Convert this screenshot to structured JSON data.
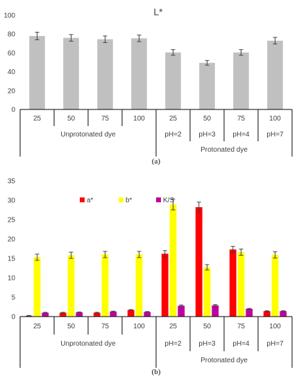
{
  "colors": {
    "gray": "#c0c0c0",
    "red": "#ff0000",
    "yellow": "#ffff00",
    "magenta": "#c000a0"
  },
  "chart_data": [
    {
      "type": "bar",
      "title": "L*",
      "caption": "(a)",
      "ylim": [
        0,
        100
      ],
      "yticks": [
        0,
        20,
        40,
        60,
        80,
        100
      ],
      "categories": [
        "25",
        "50",
        "75",
        "100",
        "25",
        "50",
        "75",
        "100"
      ],
      "subcategories": [
        "",
        "",
        "",
        "",
        "pH=2",
        "pH=3",
        "pH=4",
        "pH=7"
      ],
      "groups": [
        {
          "label": "Unprotonated dye",
          "span": [
            0,
            3
          ]
        },
        {
          "label": "Protonated dye",
          "span": [
            4,
            7
          ]
        }
      ],
      "series": [
        {
          "values": [
            78,
            76,
            74.5,
            75.5,
            60.5,
            49.5,
            60.5,
            73
          ],
          "errors": [
            4,
            3.5,
            3.5,
            3.5,
            3,
            2.5,
            3,
            3.5
          ],
          "color": "#c0c0c0"
        }
      ]
    },
    {
      "type": "bar",
      "caption": "(b)",
      "ylim": [
        0,
        35
      ],
      "yticks": [
        0,
        5,
        10,
        15,
        20,
        25,
        30,
        35
      ],
      "categories": [
        "25",
        "50",
        "75",
        "100",
        "25",
        "50",
        "75",
        "100"
      ],
      "subcategories": [
        "",
        "",
        "",
        "",
        "pH=2",
        "pH=3",
        "pH=4",
        "pH=7"
      ],
      "groups": [
        {
          "label": "Unprotonated dye",
          "span": [
            0,
            3
          ]
        },
        {
          "label": "Protonated dye",
          "span": [
            4,
            7
          ]
        }
      ],
      "legend_position": "top-center",
      "series": [
        {
          "name": "a*",
          "color": "#ff0000",
          "values": [
            0.2,
            1.0,
            1.0,
            1.7,
            16.2,
            28.2,
            17.3,
            1.4
          ],
          "errors": [
            0.1,
            0.1,
            0.1,
            0.1,
            0.8,
            1.3,
            0.8,
            0.1
          ]
        },
        {
          "name": "b*",
          "color": "#ffff00",
          "values": [
            15.3,
            15.8,
            16.0,
            16.0,
            28.9,
            12.7,
            16.6,
            15.9
          ],
          "errors": [
            0.8,
            0.8,
            0.8,
            0.8,
            1.4,
            0.7,
            0.8,
            0.8
          ]
        },
        {
          "name": "K/S",
          "color": "#c000a0",
          "values": [
            1.0,
            1.1,
            1.3,
            1.2,
            2.8,
            2.9,
            2.0,
            1.4
          ],
          "errors": [
            0.1,
            0.1,
            0.1,
            0.1,
            0.2,
            0.2,
            0.1,
            0.1
          ]
        }
      ]
    }
  ]
}
